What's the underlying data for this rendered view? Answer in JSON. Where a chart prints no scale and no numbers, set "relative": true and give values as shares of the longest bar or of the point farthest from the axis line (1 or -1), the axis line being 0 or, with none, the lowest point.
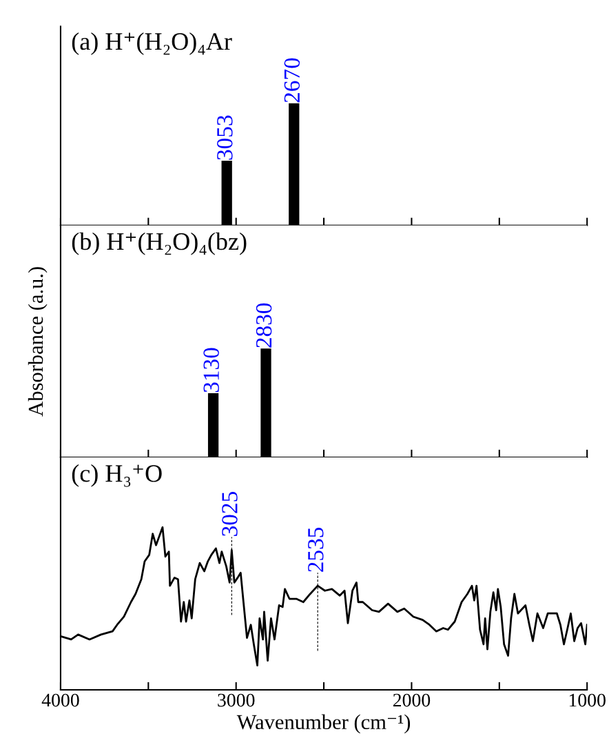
{
  "chart_data": [
    {
      "type": "bar",
      "title": "(a) H⁺(H₂O)₄Ar",
      "relative": true,
      "x": [
        3053,
        2670
      ],
      "series": [
        {
          "color": "#000000",
          "values": [
            0.53,
            1
          ]
        }
      ],
      "annotations": [
        {
          "text": "3053",
          "x": 3053,
          "y": 0.53
        },
        {
          "text": "2670",
          "x": 2670,
          "y": 1
        }
      ],
      "xlim": [
        4000,
        1000
      ],
      "xticks": [
        {
          "value": 4000,
          "label": null
        },
        {
          "value": 3500,
          "label": null
        },
        {
          "value": 3000,
          "label": null
        },
        {
          "value": 2500,
          "label": null
        },
        {
          "value": 2000,
          "label": null
        },
        {
          "value": 1500,
          "label": null
        },
        {
          "value": 1000,
          "label": null
        }
      ],
      "tick_labels": false,
      "grid": false
    },
    {
      "type": "bar",
      "title": "(b) H⁺(H₂O)₄(bz)",
      "ylabel": "Absorbance (a.u.)",
      "relative": true,
      "x": [
        3130,
        2830
      ],
      "series": [
        {
          "color": "#000000",
          "values": [
            0.59,
            1
          ]
        }
      ],
      "annotations": [
        {
          "text": "3130",
          "x": 3130,
          "y": 0.59
        },
        {
          "text": "2830",
          "x": 2830,
          "y": 1
        }
      ],
      "xlim": [
        4000,
        1000
      ],
      "xticks": [
        {
          "value": 4000,
          "label": null
        },
        {
          "value": 3500,
          "label": null
        },
        {
          "value": 3000,
          "label": null
        },
        {
          "value": 2500,
          "label": null
        },
        {
          "value": 2000,
          "label": null
        },
        {
          "value": 1500,
          "label": null
        },
        {
          "value": 1000,
          "label": null
        }
      ],
      "tick_labels": false,
      "grid": false
    },
    {
      "type": "line",
      "title": "(c) H₃⁺O",
      "xlabel": "Wavenumber (cm⁻¹)",
      "relative": true,
      "series": [
        {
          "color": "#000000",
          "x": [
            4000,
            3940,
            3900,
            3835,
            3770,
            3704,
            3678,
            3639,
            3599,
            3573,
            3540,
            3521,
            3495,
            3475,
            3456,
            3436,
            3419,
            3403,
            3383,
            3377,
            3351,
            3331,
            3314,
            3298,
            3285,
            3266,
            3253,
            3233,
            3207,
            3181,
            3161,
            3141,
            3115,
            3095,
            3082,
            3056,
            3037,
            3025,
            3010,
            2991,
            2974,
            2958,
            2938,
            2916,
            2899,
            2879,
            2866,
            2847,
            2840,
            2820,
            2801,
            2781,
            2755,
            2735,
            2722,
            2696,
            2657,
            2617,
            2578,
            2535,
            2494,
            2454,
            2409,
            2382,
            2363,
            2337,
            2314,
            2304,
            2278,
            2225,
            2186,
            2134,
            2081,
            2042,
            1990,
            1937,
            1898,
            1859,
            1820,
            1793,
            1754,
            1715,
            1682,
            1656,
            1643,
            1630,
            1610,
            1590,
            1581,
            1568,
            1551,
            1534,
            1518,
            1508,
            1492,
            1473,
            1450,
            1433,
            1414,
            1394,
            1351,
            1329,
            1309,
            1283,
            1250,
            1224,
            1172,
            1152,
            1132,
            1113,
            1093,
            1073,
            1054,
            1034,
            1010,
            1000
          ],
          "values": [
            0.33,
            0.31,
            0.34,
            0.31,
            0.34,
            0.36,
            0.4,
            0.45,
            0.54,
            0.59,
            0.68,
            0.79,
            0.83,
            0.96,
            0.89,
            0.95,
            1,
            0.82,
            0.85,
            0.64,
            0.69,
            0.68,
            0.42,
            0.54,
            0.42,
            0.55,
            0.44,
            0.68,
            0.78,
            0.73,
            0.79,
            0.83,
            0.87,
            0.78,
            0.85,
            0.76,
            0.66,
            0.86,
            0.66,
            0.69,
            0.72,
            0.54,
            0.32,
            0.4,
            0.28,
            0.15,
            0.44,
            0.31,
            0.48,
            0.18,
            0.44,
            0.31,
            0.52,
            0.51,
            0.62,
            0.56,
            0.56,
            0.54,
            0.59,
            0.64,
            0.61,
            0.62,
            0.58,
            0.61,
            0.41,
            0.61,
            0.66,
            0.54,
            0.54,
            0.49,
            0.48,
            0.53,
            0.48,
            0.5,
            0.45,
            0.43,
            0.4,
            0.36,
            0.38,
            0.37,
            0.42,
            0.54,
            0.59,
            0.64,
            0.55,
            0.64,
            0.37,
            0.28,
            0.44,
            0.25,
            0.48,
            0.6,
            0.49,
            0.62,
            0.51,
            0.28,
            0.21,
            0.44,
            0.59,
            0.47,
            0.52,
            0.4,
            0.3,
            0.47,
            0.38,
            0.47,
            0.47,
            0.4,
            0.28,
            0.37,
            0.47,
            0.3,
            0.38,
            0.41,
            0.28,
            0.4
          ]
        }
      ],
      "annotations": [
        {
          "text": "3025",
          "x": 3025,
          "y": 0.86
        },
        {
          "text": "2535",
          "x": 2535,
          "y": 0.64
        }
      ],
      "xlim": [
        4000,
        1000
      ],
      "xticks": [
        4000,
        {
          "value": 3500,
          "label": null
        },
        3000,
        {
          "value": 2500,
          "label": null
        },
        2000,
        {
          "value": 1500,
          "label": null
        },
        1000
      ],
      "tick_labels": "x",
      "grid": false,
      "marker": "none",
      "line_style": "solid"
    }
  ]
}
